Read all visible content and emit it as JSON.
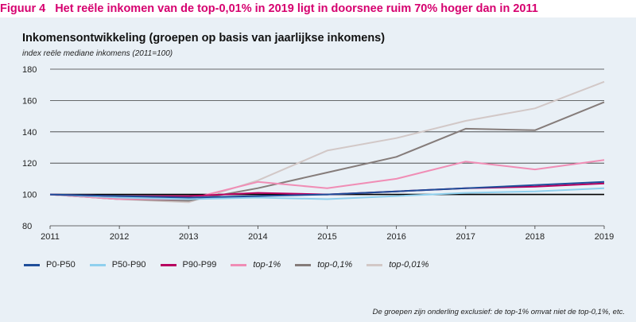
{
  "figure": {
    "number": "Figuur 4",
    "title": "Het reële inkomen van de top-0,01% in 2019 ligt in doorsnee ruim 70% hoger dan in 2011"
  },
  "footnote": "De groepen zijn onderling exclusief: de top-1% omvat niet de top-0,1%, etc.",
  "colors": {
    "title_accent": "#d6006f",
    "panel_background": "#e9f0f6"
  },
  "chart_data": {
    "type": "line",
    "title": "Inkomensontwikkeling (groepen op basis van jaarlijkse inkomens)",
    "ylabel": "index reële mediane inkomens (2011=100)",
    "xlabel": "",
    "x": [
      2011,
      2012,
      2013,
      2014,
      2015,
      2016,
      2017,
      2018,
      2019
    ],
    "ylim": [
      80,
      180
    ],
    "yticks": [
      80,
      100,
      120,
      140,
      160,
      180
    ],
    "grid": true,
    "baseline": 100,
    "legend": "bottom",
    "series": [
      {
        "name": "P0-P50",
        "color": "#1f4e9a",
        "values": [
          100,
          99,
          98,
          99,
          100,
          102,
          104,
          106,
          108
        ]
      },
      {
        "name": "P50-P90",
        "color": "#8fd0ee",
        "values": [
          100,
          98,
          97,
          98,
          97,
          99,
          101,
          102,
          104
        ]
      },
      {
        "name": "P90-P99",
        "color": "#b8005f",
        "values": [
          100,
          99,
          99,
          101,
          100,
          102,
          104,
          105,
          107
        ]
      },
      {
        "name": "top-1%",
        "color": "#f08db5",
        "values": [
          100,
          97,
          97,
          108,
          104,
          110,
          121,
          116,
          122
        ]
      },
      {
        "name": "top-0,1%",
        "color": "#857c7a",
        "values": [
          100,
          97,
          96,
          104,
          114,
          124,
          142,
          141,
          159
        ]
      },
      {
        "name": "top-0,01%",
        "color": "#d2c8c7",
        "values": [
          100,
          97,
          95,
          109,
          128,
          136,
          147,
          155,
          172
        ]
      }
    ]
  }
}
